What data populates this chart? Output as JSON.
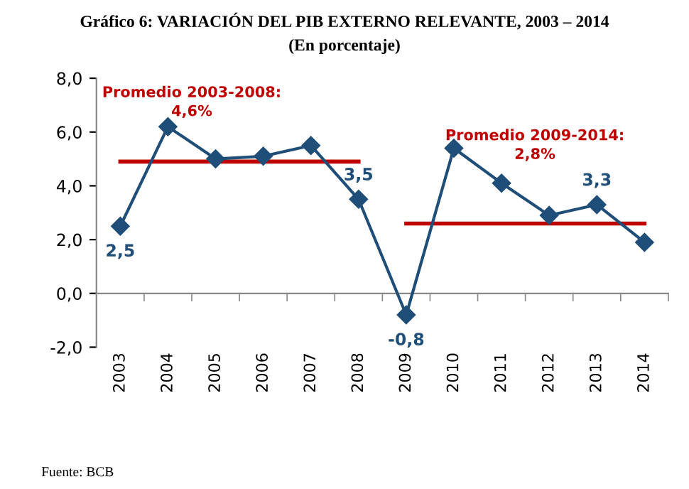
{
  "chart_data": {
    "type": "line",
    "title": "Gráfico 6: VARIACIÓN DEL PIB EXTERNO RELEVANTE, 2003 – 2014",
    "subtitle": "(En porcentaje)",
    "categories": [
      "2003",
      "2004",
      "2005",
      "2006",
      "2007",
      "2008",
      "2009",
      "2010",
      "2011",
      "2012",
      "2013",
      "2014"
    ],
    "series": [
      {
        "color": "#1f4e79",
        "marker": "diamond",
        "values": [
          2.5,
          6.2,
          5.0,
          5.1,
          5.5,
          3.5,
          -0.8,
          5.4,
          4.1,
          2.9,
          3.3,
          1.9
        ],
        "value_labels": [
          "2,5",
          null,
          null,
          null,
          null,
          "3,5",
          "-0,8",
          null,
          null,
          null,
          "3,3",
          null
        ]
      },
      {
        "color": "#c00000",
        "marker": "none",
        "values": [
          4.9,
          4.9,
          4.9,
          4.9,
          4.9,
          4.9,
          null,
          null,
          null,
          null,
          null,
          null
        ]
      },
      {
        "color": "#c00000",
        "marker": "none",
        "values": [
          null,
          null,
          null,
          null,
          null,
          null,
          2.6,
          2.6,
          2.6,
          2.6,
          2.6,
          2.6
        ]
      }
    ],
    "ylim": [
      -2,
      8
    ],
    "yticks": [
      {
        "value": -2,
        "label": "-2,0"
      },
      {
        "value": 0,
        "label": "0,0"
      },
      {
        "value": 2,
        "label": "2,0"
      },
      {
        "value": 4,
        "label": "4,0"
      },
      {
        "value": 6,
        "label": "6,0"
      },
      {
        "value": 8,
        "label": "8,0"
      }
    ],
    "legend": false,
    "annotations": [
      "Promedio 2003-2008:\n4,6%",
      "Promedio 2009-2014:\n2,8%",
      "Fuente: BCB"
    ]
  }
}
